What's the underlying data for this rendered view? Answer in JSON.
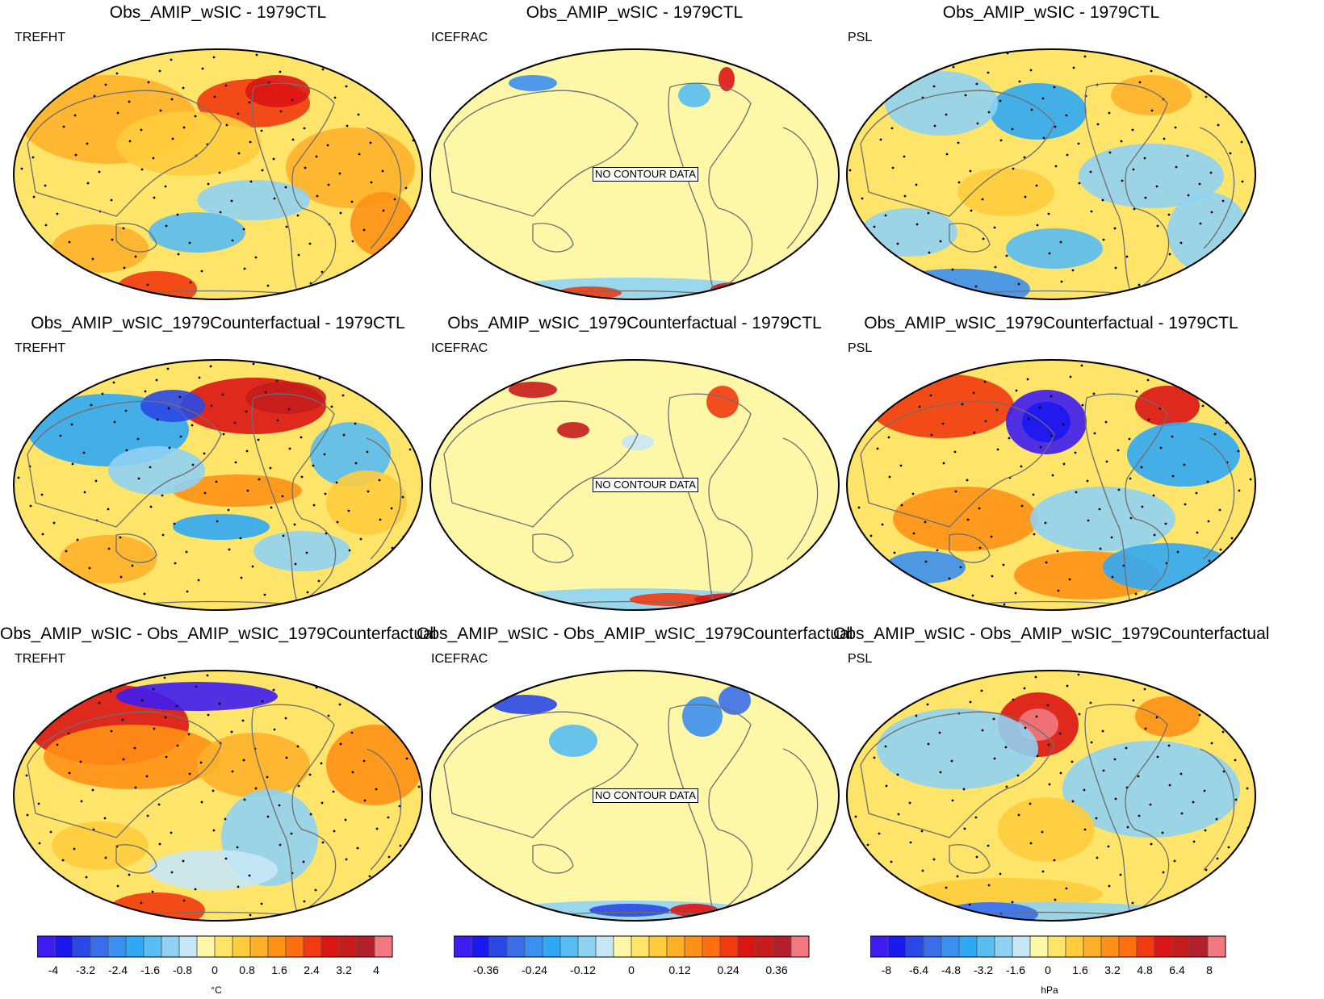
{
  "chart_data": {
    "type": "heatmap",
    "layout": "3x3 grid of global Robinson-projection difference maps",
    "panels": [
      {
        "row": 1,
        "col": 1,
        "title": "Obs_AMIP_wSIC - 1979CTL",
        "variable": "TREFHT",
        "contour_data": true
      },
      {
        "row": 1,
        "col": 2,
        "title": "Obs_AMIP_wSIC - 1979CTL",
        "variable": "ICEFRAC",
        "contour_data": false
      },
      {
        "row": 1,
        "col": 3,
        "title": "Obs_AMIP_wSIC - 1979CTL",
        "variable": "PSL",
        "contour_data": true
      },
      {
        "row": 2,
        "col": 1,
        "title": "Obs_AMIP_wSIC_1979Counterfactual - 1979CTL",
        "variable": "TREFHT",
        "contour_data": true
      },
      {
        "row": 2,
        "col": 2,
        "title": "Obs_AMIP_wSIC_1979Counterfactual - 1979CTL",
        "variable": "ICEFRAC",
        "contour_data": false
      },
      {
        "row": 2,
        "col": 3,
        "title": "Obs_AMIP_wSIC_1979Counterfactual - 1979CTL",
        "variable": "PSL",
        "contour_data": true
      },
      {
        "row": 3,
        "col": 1,
        "title": "Obs_AMIP_wSIC - Obs_AMIP_wSIC_1979Counterfactual",
        "variable": "TREFHT",
        "contour_data": true
      },
      {
        "row": 3,
        "col": 2,
        "title": "Obs_AMIP_wSIC - Obs_AMIP_wSIC_1979Counterfactual",
        "variable": "ICEFRAC",
        "contour_data": false
      },
      {
        "row": 3,
        "col": 3,
        "title": "Obs_AMIP_wSIC - Obs_AMIP_wSIC_1979Counterfactual",
        "variable": "PSL",
        "contour_data": true
      }
    ],
    "no_contour_label": "NO CONTOUR DATA",
    "colorbars": [
      {
        "variable": "TREFHT",
        "unit": "°C",
        "range": [
          -4.4,
          4.4
        ],
        "tick_labels": [
          "-4",
          "-3.2",
          "-2.4",
          "-1.6",
          "-0.8",
          "0",
          "0.8",
          "1.6",
          "2.4",
          "3.2",
          "4"
        ]
      },
      {
        "variable": "ICEFRAC",
        "unit": "",
        "range": [
          -0.44,
          0.44
        ],
        "tick_labels": [
          "-0.36",
          "-0.24",
          "-0.12",
          "0",
          "0.12",
          "0.24",
          "0.36"
        ]
      },
      {
        "variable": "PSL",
        "unit": "hPa",
        "range": [
          -8.8,
          8.8
        ],
        "tick_labels": [
          "-8",
          "-6.4",
          "-4.8",
          "-3.2",
          "-1.6",
          "0",
          "1.6",
          "3.2",
          "4.8",
          "6.4",
          "8"
        ]
      }
    ],
    "palette": [
      "#3e1cf2",
      "#1b18f0",
      "#2a48e6",
      "#3a6ee9",
      "#3b8ff0",
      "#30a8f5",
      "#58bdf2",
      "#8fd1f3",
      "#c5e7f6",
      "#fff7a8",
      "#ffe46a",
      "#ffcc3e",
      "#ffb02a",
      "#ff9116",
      "#ff6f10",
      "#f23a10",
      "#db1414",
      "#c61c1c",
      "#b3202b",
      "#f17880"
    ],
    "stippling": "dots mark regions of statistical significance"
  }
}
